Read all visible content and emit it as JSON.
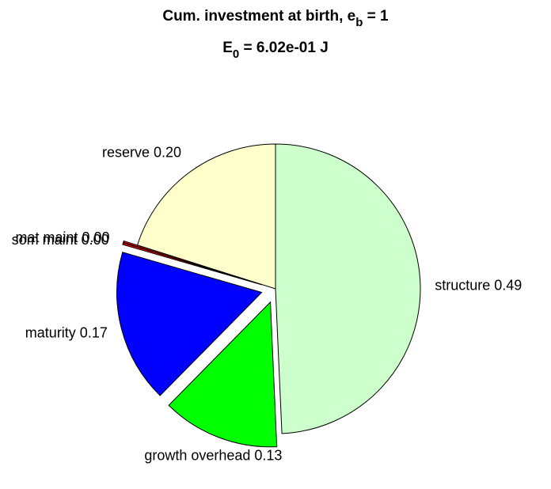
{
  "chart_data": {
    "type": "pie",
    "title": [
      "Cum. investment at birth, e_b = 1",
      "E_0 = 6.02e-01 J"
    ],
    "categories": [
      "structure",
      "growth overhead",
      "maturity",
      "som maint",
      "mat maint",
      "reserve"
    ],
    "values": [
      0.49,
      0.13,
      0.17,
      0.002,
      0.002,
      0.2
    ],
    "value_labels": [
      "structure 0.49",
      "growth overhead 0.13",
      "maturity 0.17",
      "som maint 0.00",
      "mat maint 0.00",
      "reserve 0.20"
    ],
    "explode": [
      false,
      true,
      true,
      true,
      true,
      false
    ],
    "colors": [
      "#ccffcc",
      "#00ff00",
      "#0000ff",
      "#ff0000",
      "#cc0000",
      "#ffffcc"
    ]
  }
}
